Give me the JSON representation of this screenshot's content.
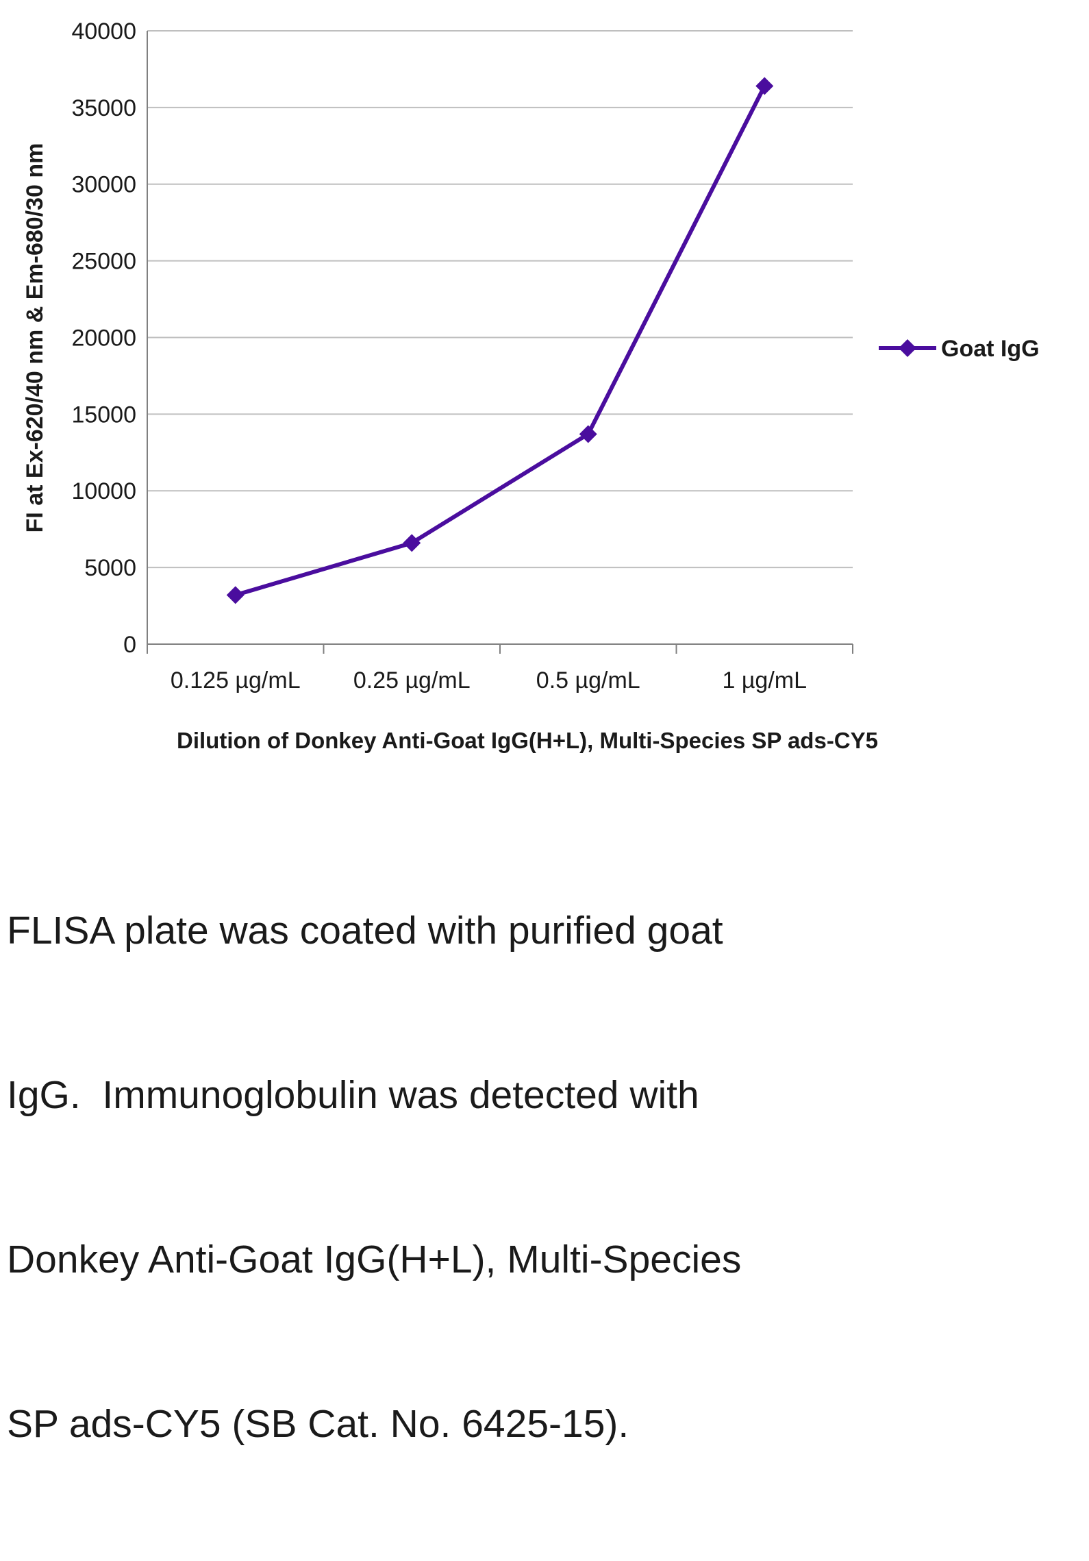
{
  "figure": {
    "legend": {
      "label": "Goat IgG"
    },
    "caption_lines": [
      "FLISA plate was coated with purified goat",
      "IgG.  Immunoglobulin was detected with",
      "Donkey Anti-Goat IgG(H+L), Multi-Species",
      "SP ads-CY5 (SB Cat. No. 6425-15)."
    ]
  },
  "chart_data": {
    "type": "line",
    "title": "",
    "categories": [
      "0.125 µg/mL",
      "0.25 µg/mL",
      "0.5 µg/mL",
      "1 µg/mL"
    ],
    "series": [
      {
        "name": "Goat IgG",
        "values": [
          3200,
          6600,
          13700,
          36400
        ],
        "color": "#4a0d9e",
        "marker": "diamond"
      }
    ],
    "xlabel": "Dilution of Donkey Anti-Goat IgG(H+L), Multi-Species SP ads-CY5",
    "ylabel": "FI at Ex-620/40 nm & Em-680/30 nm",
    "ylim": [
      0,
      40000
    ],
    "ytick_step": 5000,
    "grid": "horizontal",
    "legend_position": "right"
  },
  "colors": {
    "series": "#4a0d9e",
    "grid": "#bfbfbf",
    "axis": "#808080",
    "text": "#1a1a1a"
  }
}
